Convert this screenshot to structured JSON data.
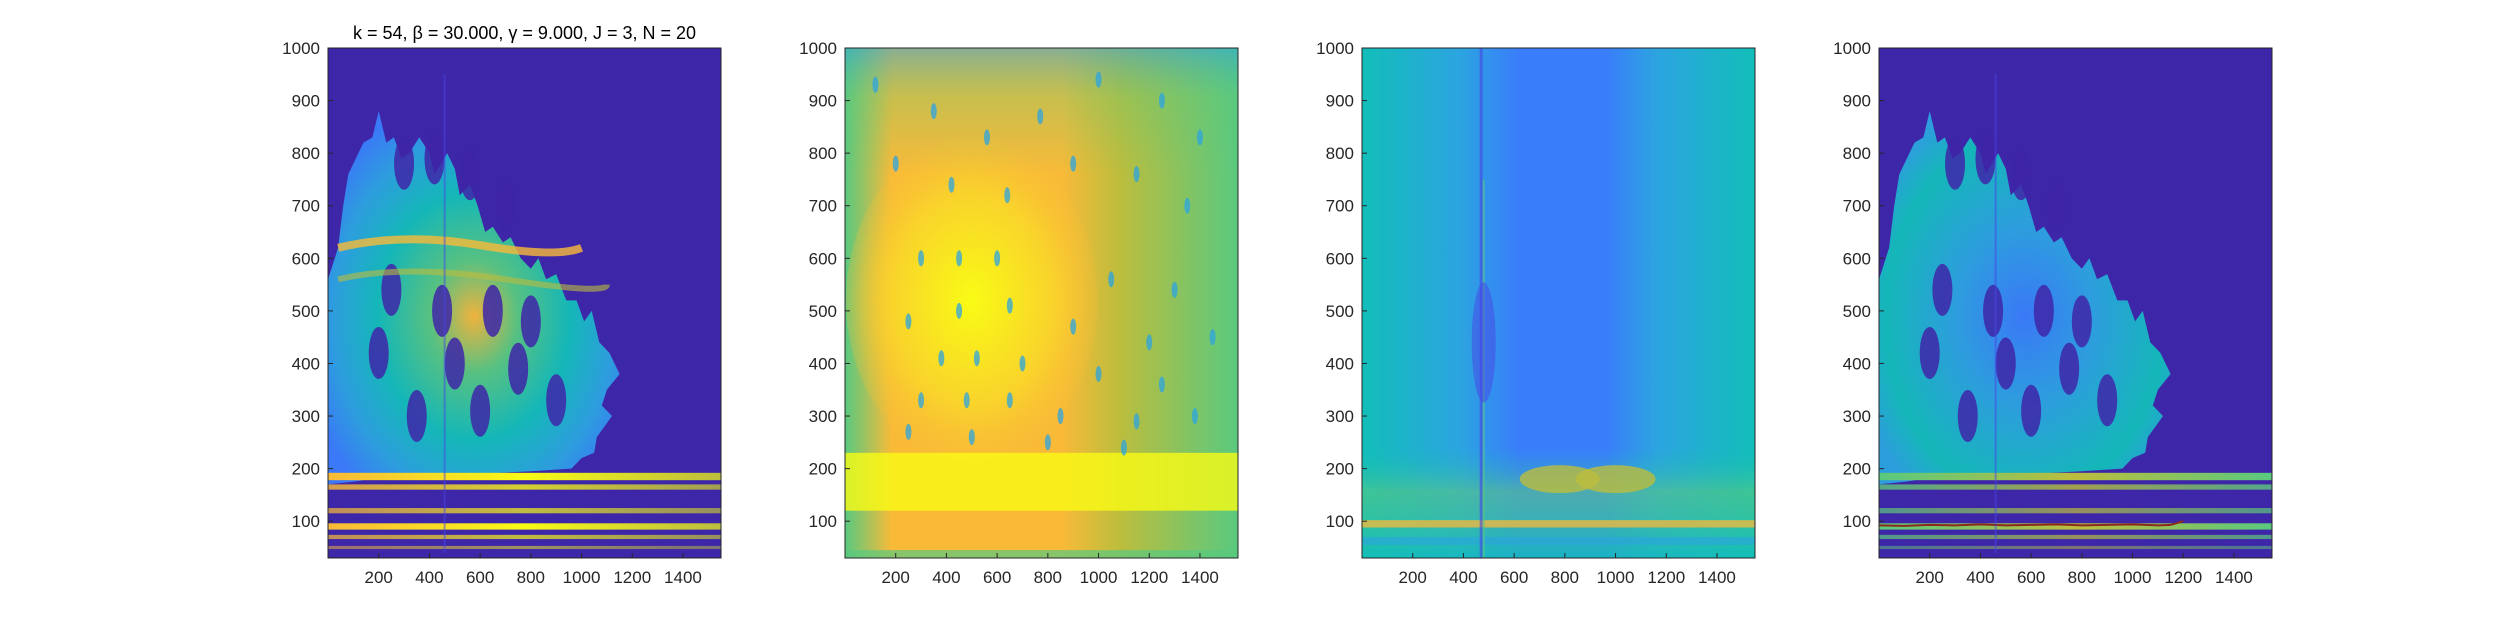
{
  "figure_title": "k = 54, β = 30.000, γ = 9.000, J = 3, N = 20",
  "colors": {
    "background_low": "#3E26A8",
    "colormap": [
      "#3E26A8",
      "#4745E5",
      "#3A7DFB",
      "#2CA4E0",
      "#12BEB9",
      "#59C97F",
      "#BCBD3D",
      "#F9BA38",
      "#F9FB15"
    ]
  },
  "chart_data": [
    {
      "type": "heatmap",
      "panel": "spectrogram",
      "title": "k = 54, β = 30.000, γ = 9.000, J = 3, N = 20",
      "xlim": [
        0,
        1550
      ],
      "ylim": [
        30,
        1000
      ],
      "xticks": [
        200,
        400,
        600,
        800,
        1000,
        1200,
        1400
      ],
      "yticks": [
        100,
        200,
        300,
        400,
        500,
        600,
        700,
        800,
        900,
        1000
      ],
      "xlabel": "",
      "ylabel": "",
      "grid": false,
      "colormap": "parula"
    },
    {
      "type": "heatmap",
      "panel": "smoothed-energy",
      "xlim": [
        0,
        1550
      ],
      "ylim": [
        30,
        1000
      ],
      "xticks": [
        200,
        400,
        600,
        800,
        1000,
        1200,
        1400
      ],
      "yticks": [
        100,
        200,
        300,
        400,
        500,
        600,
        700,
        800,
        900,
        1000
      ],
      "xlabel": "",
      "ylabel": "",
      "grid": false,
      "colormap": "parula"
    },
    {
      "type": "heatmap",
      "panel": "column-normalized",
      "xlim": [
        0,
        1550
      ],
      "ylim": [
        30,
        1000
      ],
      "xticks": [
        200,
        400,
        600,
        800,
        1000,
        1200,
        1400
      ],
      "yticks": [
        100,
        200,
        300,
        400,
        500,
        600,
        700,
        800,
        900,
        1000
      ],
      "xlabel": "",
      "ylabel": "",
      "grid": false,
      "colormap": "parula"
    },
    {
      "type": "heatmap",
      "panel": "spectrogram-with-ridge",
      "xlim": [
        0,
        1550
      ],
      "ylim": [
        30,
        1000
      ],
      "xticks": [
        200,
        400,
        600,
        800,
        1000,
        1200,
        1400
      ],
      "yticks": [
        100,
        200,
        300,
        400,
        500,
        600,
        700,
        800,
        900,
        1000
      ],
      "xlabel": "",
      "ylabel": "",
      "grid": false,
      "colormap": "parula",
      "ridge_line": {
        "color": "#8B2A1A",
        "x": [
          0,
          100,
          200,
          300,
          400,
          500,
          600,
          700,
          800,
          900,
          1000,
          1100,
          1150,
          1200
        ],
        "y": [
          92,
          91,
          93,
          92,
          94,
          92,
          93,
          94,
          92,
          93,
          94,
          92,
          93,
          100
        ]
      }
    }
  ]
}
